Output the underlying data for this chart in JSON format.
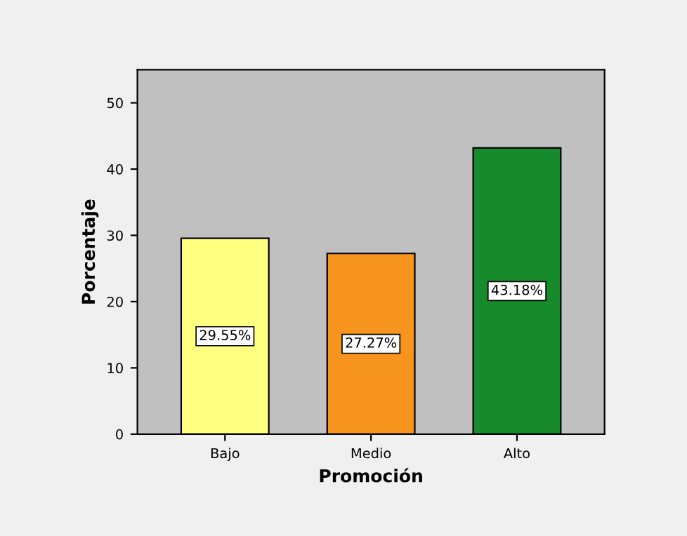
{
  "chart_data": {
    "type": "bar",
    "xlabel": "Promoción",
    "ylabel": "Porcentaje",
    "categories": [
      "Bajo",
      "Medio",
      "Alto"
    ],
    "values": [
      29.55,
      27.27,
      43.18
    ],
    "colors": [
      "#ffff80",
      "#f7941d",
      "#178a2c"
    ],
    "value_labels": [
      "29.55%",
      "27.27%",
      "43.18%"
    ],
    "ylim": [
      0,
      55
    ],
    "yticks": [
      0,
      10,
      20,
      30,
      40,
      50
    ],
    "grid": false,
    "legend": false
  }
}
